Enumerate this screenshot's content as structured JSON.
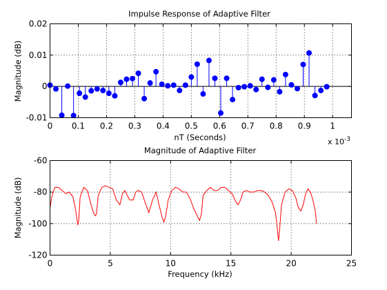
{
  "chart_data": [
    {
      "type": "stem",
      "title": "Impulse Response of Adaptive Filter",
      "xlabel": "nT (Seconds)",
      "ylabel": "Magnitude (dB)",
      "x_multiplier": "x 10",
      "x_multiplier_exp": "-3",
      "xlim": [
        0,
        0.00106667
      ],
      "ylim": [
        -0.01,
        0.02
      ],
      "xticks": [
        0,
        0.0001,
        0.0002,
        0.0003,
        0.0004,
        0.0005,
        0.0006,
        0.0007,
        0.0008,
        0.0009,
        0.001
      ],
      "xtick_labels": [
        "0",
        "0.1",
        "0.2",
        "0.3",
        "0.4",
        "0.5",
        "0.6",
        "0.7",
        "0.8",
        "0.9",
        "1"
      ],
      "yticks": [
        -0.01,
        0,
        0.01,
        0.02
      ],
      "ytick_labels": [
        "-0.01",
        "0",
        "0.01",
        "0.02"
      ],
      "grid": true,
      "color": "#0000ff",
      "sample_interval": 2.08333e-05,
      "values": [
        0.0004,
        -0.0008,
        -0.0092,
        0.0001,
        -0.0093,
        -0.0022,
        -0.0034,
        -0.0014,
        -0.0008,
        -0.0013,
        -0.0022,
        -0.003,
        0.0013,
        0.0023,
        0.0025,
        0.0042,
        -0.0039,
        0.0011,
        0.0047,
        0.0007,
        0.0002,
        0.0004,
        -0.0013,
        0.0004,
        0.003,
        0.0071,
        -0.0024,
        0.0083,
        0.0026,
        -0.0085,
        0.0026,
        -0.0042,
        -0.0004,
        -0.0001,
        0.0002,
        -0.001,
        0.0023,
        -0.0003,
        0.0021,
        -0.0017,
        0.0038,
        0.0005,
        -0.0007,
        0.007,
        0.0107,
        -0.0029,
        -0.0013,
        -0.0001
      ]
    },
    {
      "type": "line",
      "title": "Magnitude of Adaptive Filter",
      "xlabel": "Frequency (kHz)",
      "ylabel": "Magnitude (dB)",
      "xlim": [
        0,
        25
      ],
      "ylim": [
        -120,
        -60
      ],
      "xticks": [
        0,
        5,
        10,
        15,
        20,
        25
      ],
      "xtick_labels": [
        "0",
        "5",
        "10",
        "15",
        "20",
        "25"
      ],
      "yticks": [
        -120,
        -100,
        -80,
        -60
      ],
      "ytick_labels": [
        "-120",
        "-100",
        "-80",
        "-60"
      ],
      "grid": true,
      "color": "#ff0000",
      "x": [
        0,
        0.15,
        0.4,
        0.7,
        1.0,
        1.3,
        1.6,
        1.9,
        2.1,
        2.25,
        2.3,
        2.38,
        2.5,
        2.8,
        3.1,
        3.4,
        3.6,
        3.75,
        3.85,
        4.0,
        4.3,
        4.6,
        4.9,
        5.2,
        5.5,
        5.8,
        6.0,
        6.2,
        6.4,
        6.6,
        6.9,
        7.1,
        7.3,
        7.6,
        7.9,
        8.2,
        8.5,
        8.8,
        9.1,
        9.3,
        9.45,
        9.6,
        9.8,
        10.1,
        10.4,
        10.7,
        11.0,
        11.3,
        11.6,
        11.9,
        12.2,
        12.4,
        12.55,
        12.7,
        13.0,
        13.3,
        13.6,
        13.9,
        14.2,
        14.5,
        14.8,
        15.1,
        15.4,
        15.6,
        15.8,
        16.0,
        16.3,
        16.6,
        16.9,
        17.2,
        17.5,
        17.8,
        18.1,
        18.4,
        18.7,
        18.85,
        18.95,
        19.05,
        19.2,
        19.5,
        19.8,
        20.1,
        20.4,
        20.6,
        20.8,
        21.0,
        21.2,
        21.4,
        21.6,
        21.8,
        22.0,
        22.1
      ],
      "y": [
        -90,
        -83,
        -77,
        -77,
        -79,
        -81,
        -80,
        -83,
        -90,
        -98,
        -101,
        -98,
        -83,
        -77,
        -79,
        -88,
        -93,
        -95,
        -94,
        -82,
        -77,
        -76,
        -77,
        -78,
        -85,
        -88,
        -81,
        -79,
        -82,
        -85,
        -85,
        -80,
        -79,
        -80,
        -87,
        -93,
        -85,
        -80,
        -90,
        -96,
        -99,
        -95,
        -85,
        -79,
        -77,
        -78,
        -80,
        -80,
        -84,
        -90,
        -95,
        -98,
        -94,
        -82,
        -79,
        -77,
        -79,
        -79,
        -77,
        -77,
        -79,
        -81,
        -86,
        -88,
        -85,
        -80,
        -79,
        -80,
        -80,
        -79,
        -79,
        -80,
        -82,
        -86,
        -93,
        -103,
        -111,
        -103,
        -88,
        -80,
        -78,
        -79,
        -84,
        -90,
        -92,
        -88,
        -81,
        -78,
        -80,
        -85,
        -92,
        -100
      ]
    }
  ]
}
